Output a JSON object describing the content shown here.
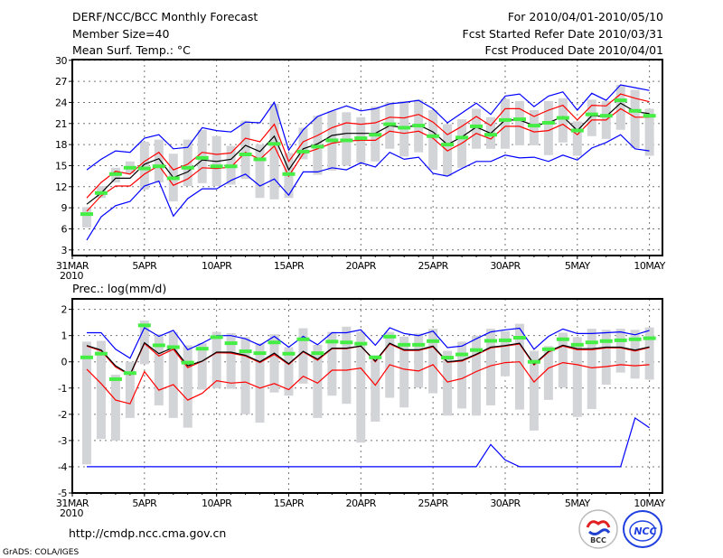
{
  "header": {
    "title": "DERF/NCC/BCC Monthly Forecast",
    "member_size": "Member Size=40",
    "variable": "Mean Surf. Temp.: °C",
    "period": "For 2010/04/01-2010/05/10",
    "started": "Fcst Started Refer Date 2010/03/31",
    "produced": "Fcst Produced Date 2010/04/01"
  },
  "footer": {
    "url": "http://cmdp.ncc.cma.gov.cn",
    "credit": "GrADS: COLA/IGES",
    "logo_bcc": "BCC",
    "logo_ncc": "NCC"
  },
  "colors": {
    "envelope": "#0000ff",
    "spread": "#ff0000",
    "mean": "#000000",
    "obs": "#44ee44",
    "range": "#d3d4d8"
  },
  "chart_data": [
    {
      "type": "line",
      "title": "Mean Surf. Temp.: °C",
      "xlabel": "",
      "ylabel": "°C",
      "x_ticks": [
        {
          "day": 0,
          "label": "31MAR"
        },
        {
          "day": 5,
          "label": "5APR"
        },
        {
          "day": 10,
          "label": "10APR"
        },
        {
          "day": 15,
          "label": "15APR"
        },
        {
          "day": 20,
          "label": "20APR"
        },
        {
          "day": 25,
          "label": "25APR"
        },
        {
          "day": 30,
          "label": "30APR"
        },
        {
          "day": 35,
          "label": "5MAY"
        },
        {
          "day": 40,
          "label": "10MAY"
        }
      ],
      "year_label": "2010",
      "y_ticks": [
        3,
        6,
        9,
        12,
        15,
        18,
        21,
        24,
        27,
        30
      ],
      "xlim": [
        0,
        40.9
      ],
      "ylim": [
        2.2,
        30.1
      ],
      "grid": true,
      "days": [
        1,
        2,
        3,
        4,
        5,
        6,
        7,
        8,
        9,
        10,
        11,
        12,
        13,
        14,
        15,
        16,
        17,
        18,
        19,
        20,
        21,
        22,
        23,
        24,
        25,
        26,
        27,
        28,
        29,
        30,
        31,
        32,
        33,
        34,
        35,
        36,
        37,
        38,
        39,
        40
      ],
      "range_bars": {
        "max": [
          9.1,
          12.1,
          14.7,
          15.6,
          18.4,
          18.7,
          16.7,
          18.7,
          20.1,
          19.2,
          17.8,
          21.4,
          18.0,
          23.8,
          16.8,
          20.4,
          22.1,
          22.8,
          22.6,
          21.9,
          23.4,
          24.0,
          24.2,
          24.4,
          22.9,
          20.9,
          21.6,
          23.1,
          21.9,
          24.5,
          24.2,
          22.9,
          24.2,
          24.6,
          21.3,
          24.4,
          24.2,
          26.5,
          25.8,
          23.1
        ],
        "min": [
          6.2,
          10.4,
          12.6,
          13.9,
          11.6,
          12.6,
          9.9,
          12.1,
          12.5,
          12.1,
          12.3,
          13.1,
          10.4,
          10.2,
          10.4,
          15.9,
          13.7,
          14.3,
          15.0,
          15.4,
          15.6,
          17.4,
          16.3,
          16.9,
          14.4,
          13.5,
          14.7,
          17.4,
          17.4,
          17.4,
          17.9,
          17.9,
          16.5,
          18.3,
          16.4,
          19.2,
          18.8,
          20.1,
          17.5,
          16.4
        ]
      },
      "series": [
        {
          "name": "upper envelope",
          "color": "#0000ff",
          "values": [
            14.4,
            15.9,
            17.1,
            16.9,
            18.9,
            19.4,
            17.4,
            17.6,
            20.4,
            20.0,
            19.8,
            21.2,
            21.1,
            24.0,
            17.2,
            20.1,
            22.0,
            22.8,
            23.5,
            22.8,
            23.1,
            23.8,
            24.0,
            24.3,
            23.1,
            21.1,
            22.5,
            23.9,
            22.3,
            24.9,
            25.2,
            23.4,
            24.9,
            25.5,
            22.9,
            25.3,
            24.3,
            26.5,
            26.1,
            25.7
          ]
        },
        {
          "name": "upper spread",
          "color": "#ff0000",
          "values": [
            10.4,
            12.6,
            14.2,
            13.8,
            15.6,
            16.9,
            14.4,
            15.2,
            16.9,
            16.6,
            16.8,
            18.9,
            18.4,
            20.9,
            15.6,
            18.4,
            19.3,
            20.4,
            21.1,
            20.9,
            21.1,
            21.9,
            21.8,
            22.3,
            21.2,
            19.4,
            20.6,
            22.0,
            20.7,
            23.1,
            23.1,
            22.0,
            22.9,
            23.6,
            21.5,
            23.6,
            23.5,
            25.2,
            24.6,
            24.1
          ]
        },
        {
          "name": "ensemble mean",
          "color": "#000000",
          "values": [
            9.5,
            11.1,
            13.2,
            13.2,
            15.2,
            16.0,
            13.3,
            14.1,
            15.8,
            15.6,
            15.9,
            17.9,
            17.0,
            19.2,
            14.4,
            17.4,
            18.1,
            19.3,
            19.6,
            19.6,
            19.6,
            20.7,
            20.4,
            20.8,
            19.8,
            18.0,
            19.1,
            20.5,
            19.6,
            21.5,
            21.5,
            20.7,
            21.1,
            22.0,
            20.0,
            22.1,
            22.0,
            23.9,
            22.7,
            22.4
          ]
        },
        {
          "name": "lower spread",
          "color": "#ff0000",
          "values": [
            8.5,
            10.7,
            12.1,
            12.1,
            13.8,
            15.0,
            12.2,
            13.1,
            14.7,
            14.6,
            14.8,
            16.9,
            15.9,
            17.8,
            13.5,
            16.7,
            17.4,
            18.2,
            18.5,
            18.6,
            18.6,
            19.9,
            19.6,
            19.9,
            18.9,
            17.1,
            18.2,
            19.6,
            18.8,
            20.6,
            20.6,
            19.8,
            20.0,
            20.9,
            19.4,
            21.5,
            21.5,
            23.1,
            21.9,
            21.9
          ]
        },
        {
          "name": "lower envelope",
          "color": "#0000ff",
          "values": [
            4.4,
            7.7,
            9.3,
            9.9,
            12.1,
            12.8,
            7.8,
            10.3,
            11.7,
            11.7,
            12.9,
            13.8,
            12.1,
            13.1,
            10.8,
            14.1,
            14.1,
            14.7,
            14.4,
            15.4,
            14.8,
            16.9,
            15.9,
            16.2,
            13.9,
            13.5,
            14.6,
            15.6,
            15.6,
            16.5,
            16.1,
            16.2,
            15.6,
            16.5,
            15.8,
            17.5,
            18.3,
            19.4,
            17.4,
            17.1
          ]
        }
      ],
      "markers": {
        "name": "median",
        "color": "#44ee44",
        "values": [
          8.1,
          11.1,
          13.8,
          14.7,
          14.6,
          14.9,
          13.2,
          14.7,
          16.1,
          14.9,
          14.9,
          16.6,
          15.9,
          18.1,
          13.8,
          17.0,
          17.7,
          18.6,
          18.6,
          18.9,
          19.4,
          20.9,
          20.4,
          20.7,
          19.2,
          18.0,
          19.0,
          20.6,
          19.4,
          21.5,
          21.6,
          20.7,
          21.1,
          21.8,
          20.0,
          22.3,
          22.1,
          24.3,
          22.8,
          22.1
        ]
      }
    },
    {
      "type": "line",
      "title": "Prec.: log(mm/d)",
      "xlabel": "",
      "ylabel": "log(mm/d)",
      "x_ticks": [
        {
          "day": 0,
          "label": "31MAR"
        },
        {
          "day": 5,
          "label": "5APR"
        },
        {
          "day": 10,
          "label": "10APR"
        },
        {
          "day": 15,
          "label": "15APR"
        },
        {
          "day": 20,
          "label": "20APR"
        },
        {
          "day": 25,
          "label": "25APR"
        },
        {
          "day": 30,
          "label": "30APR"
        },
        {
          "day": 35,
          "label": "5MAY"
        },
        {
          "day": 40,
          "label": "10MAY"
        }
      ],
      "year_label": "2010",
      "y_ticks": [
        -5,
        -4,
        -3,
        -2,
        -1,
        0,
        1,
        2
      ],
      "xlim": [
        0,
        40.9
      ],
      "ylim": [
        -5,
        2.4
      ],
      "grid": true,
      "days": [
        1,
        2,
        3,
        4,
        5,
        6,
        7,
        8,
        9,
        10,
        11,
        12,
        13,
        14,
        15,
        16,
        17,
        18,
        19,
        20,
        21,
        22,
        23,
        24,
        25,
        26,
        27,
        28,
        29,
        30,
        31,
        32,
        33,
        34,
        35,
        36,
        37,
        38,
        39,
        40
      ],
      "range_bars": {
        "max": [
          0.77,
          0.8,
          -0.49,
          0,
          1.57,
          1.05,
          1.13,
          0.63,
          0.71,
          1.14,
          1.09,
          0.94,
          0.71,
          1.05,
          0.56,
          1.28,
          0.65,
          1.14,
          1.34,
          1.14,
          0.25,
          1.14,
          0.96,
          1.08,
          1.26,
          0.42,
          0.77,
          1.0,
          1.26,
          1.17,
          1.45,
          0.42,
          0.6,
          1.11,
          0.94,
          1.26,
          1.22,
          1.26,
          1.22,
          1.31
        ],
        "min": [
          -3.91,
          -2.94,
          -3.0,
          -2.14,
          -0.09,
          -1.66,
          -2.14,
          -2.51,
          -1.06,
          -1.0,
          -1.03,
          -2.0,
          -2.32,
          -1.17,
          -1.29,
          -0.83,
          -2.14,
          -1.29,
          -1.6,
          -3.08,
          -2.28,
          -1.37,
          -1.74,
          -0.98,
          -1.2,
          -2.05,
          -1.78,
          -2.05,
          -1.66,
          -0.55,
          -1.82,
          -2.62,
          -1.45,
          -0.98,
          -2.1,
          -1.8,
          -0.87,
          -0.41,
          -0.64,
          -0.68
        ]
      },
      "series": [
        {
          "name": "upper envelope",
          "color": "#0000ff",
          "values": [
            1.11,
            1.11,
            0.48,
            0.14,
            1.3,
            0.97,
            1.2,
            0.46,
            0.71,
            1.0,
            1.0,
            0.88,
            0.63,
            0.97,
            0.56,
            0.97,
            0.65,
            1.11,
            1.11,
            1.22,
            0.63,
            1.3,
            1.08,
            1.0,
            1.17,
            0.54,
            0.6,
            0.88,
            1.14,
            1.22,
            1.28,
            0.48,
            0.97,
            1.25,
            1.08,
            1.08,
            1.11,
            1.14,
            1.03,
            1.2
          ]
        },
        {
          "name": "upper spread",
          "color": "#ff0000",
          "values": [
            0.6,
            0.42,
            -0.2,
            -0.5,
            0.7,
            0.22,
            0.48,
            -0.22,
            0.02,
            0.35,
            0.33,
            0.22,
            -0.03,
            0.28,
            -0.1,
            0.38,
            0.06,
            0.5,
            0.5,
            0.6,
            0.0,
            0.68,
            0.43,
            0.43,
            0.57,
            -0.02,
            0.03,
            0.27,
            0.53,
            0.6,
            0.68,
            -0.12,
            0.37,
            0.6,
            0.46,
            0.46,
            0.53,
            0.53,
            0.41,
            0.55
          ]
        },
        {
          "name": "ensemble mean",
          "color": "#000000",
          "values": [
            0.62,
            0.45,
            -0.15,
            -0.49,
            0.73,
            0.31,
            0.54,
            -0.15,
            0.03,
            0.37,
            0.37,
            0.25,
            0,
            0.33,
            -0.07,
            0.4,
            0.1,
            0.52,
            0.52,
            0.6,
            0.03,
            0.71,
            0.46,
            0.46,
            0.6,
            0,
            0.06,
            0.29,
            0.56,
            0.62,
            0.71,
            -0.09,
            0.4,
            0.63,
            0.5,
            0.5,
            0.56,
            0.56,
            0.45,
            0.57
          ]
        },
        {
          "name": "lower spread",
          "color": "#ff0000",
          "values": [
            -0.28,
            -0.83,
            -1.46,
            -1.6,
            -0.37,
            -1.08,
            -0.87,
            -1.46,
            -1.2,
            -0.72,
            -0.81,
            -0.77,
            -1.0,
            -0.83,
            -1.06,
            -0.55,
            -0.81,
            -0.32,
            -0.32,
            -0.24,
            -0.89,
            -0.11,
            -0.28,
            -0.35,
            -0.11,
            -0.77,
            -0.64,
            -0.37,
            -0.15,
            -0.03,
            0,
            -0.77,
            -0.24,
            -0.03,
            -0.11,
            -0.23,
            -0.18,
            -0.11,
            -0.15,
            -0.11
          ]
        },
        {
          "name": "lower envelope",
          "color": "#0000ff",
          "values": [
            -4,
            -4,
            -4,
            -4,
            -4,
            -4,
            -4,
            -4,
            -4,
            -4,
            -4,
            -4,
            -4,
            -4,
            -4,
            -4,
            -4,
            -4,
            -4,
            -4,
            -4,
            -4,
            -4,
            -4,
            -4,
            -4,
            -4,
            -4,
            -3.15,
            -3.74,
            -4,
            -4,
            -4,
            -4,
            -4,
            -4,
            -4,
            -4,
            -2.14,
            -2.51
          ]
        }
      ],
      "markers": {
        "name": "median",
        "color": "#44ee44",
        "values": [
          0.17,
          0.31,
          -0.66,
          -0.43,
          1.39,
          0.63,
          0.56,
          -0.03,
          0.5,
          0.94,
          0.71,
          0.4,
          0.33,
          0.74,
          0.31,
          0.86,
          0.33,
          0.77,
          0.74,
          0.69,
          0.17,
          0.96,
          0.65,
          0.65,
          0.79,
          0.16,
          0.28,
          0.45,
          0.8,
          0.82,
          0.92,
          0,
          0.48,
          0.86,
          0.65,
          0.74,
          0.79,
          0.82,
          0.86,
          0.9
        ]
      }
    }
  ]
}
